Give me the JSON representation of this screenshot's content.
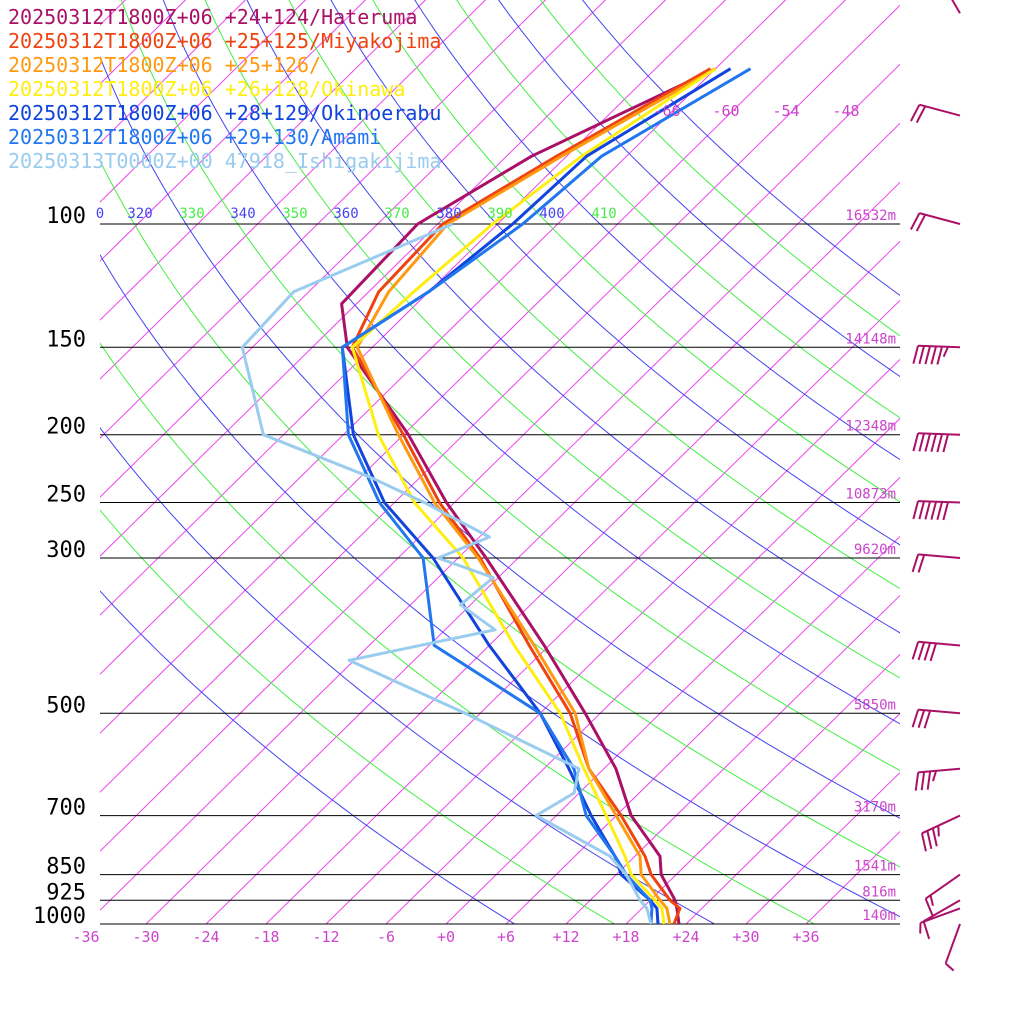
{
  "chart_data": {
    "type": "line",
    "title": "",
    "xlabel": "",
    "ylabel": "",
    "x_unit": "degC",
    "y_unit": "hPa",
    "skew_t": true,
    "pressure_log_scale": true,
    "ylim": [
      1000,
      100
    ],
    "xlim_at_1000hPa": [
      -40,
      40
    ],
    "pressure_ticks": [
      {
        "p": 100,
        "label": "100",
        "height": "16532m"
      },
      {
        "p": 150,
        "label": "150",
        "height": "14148m"
      },
      {
        "p": 200,
        "label": "200",
        "height": "12348m"
      },
      {
        "p": 250,
        "label": "250",
        "height": "10873m"
      },
      {
        "p": 300,
        "label": "300",
        "height": "9620m"
      },
      {
        "p": 500,
        "label": "500",
        "height": "5850m"
      },
      {
        "p": 700,
        "label": "700",
        "height": "3170m"
      },
      {
        "p": 850,
        "label": "850",
        "height": "1541m"
      },
      {
        "p": 925,
        "label": "925",
        "height": "816m"
      },
      {
        "p": 1000,
        "label": "1000",
        "height": "140m"
      }
    ],
    "temperature_ticks": [
      {
        "t": -36,
        "label": "-36"
      },
      {
        "t": -30,
        "label": "-30"
      },
      {
        "t": -24,
        "label": "-24"
      },
      {
        "t": -18,
        "label": "-18"
      },
      {
        "t": -12,
        "label": "-12"
      },
      {
        "t": -6,
        "label": "-6"
      },
      {
        "t": 0,
        "label": "+0"
      },
      {
        "t": 6,
        "label": "+6"
      },
      {
        "t": 12,
        "label": "+12"
      },
      {
        "t": 18,
        "label": "+18"
      },
      {
        "t": 24,
        "label": "+24"
      },
      {
        "t": 30,
        "label": "+30"
      },
      {
        "t": 36,
        "label": "+36"
      }
    ],
    "isotherm_labels_top": [
      {
        "t": -66,
        "label": "-66"
      },
      {
        "t": -60,
        "label": "-60"
      },
      {
        "t": -54,
        "label": "-54"
      },
      {
        "t": -48,
        "label": "-48"
      }
    ],
    "theta_labels": [
      {
        "value": 310,
        "label": "0",
        "kind": "dry"
      },
      {
        "value": 320,
        "label": "320",
        "kind": "dry"
      },
      {
        "value": 330,
        "label": "330",
        "kind": "moist"
      },
      {
        "value": 340,
        "label": "340",
        "kind": "dry"
      },
      {
        "value": 350,
        "label": "350",
        "kind": "moist"
      },
      {
        "value": 360,
        "label": "360",
        "kind": "dry"
      },
      {
        "value": 370,
        "label": "370",
        "kind": "moist"
      },
      {
        "value": 380,
        "label": "380",
        "kind": "dry"
      },
      {
        "value": 390,
        "label": "390",
        "kind": "moist"
      },
      {
        "value": 400,
        "label": "400",
        "kind": "dry"
      },
      {
        "value": 410,
        "label": "410",
        "kind": "moist"
      }
    ],
    "series": [
      {
        "name": "20250312T1800Z+06 +24+124/Hateruma",
        "color": "#aa1166",
        "points": [
          [
            1000,
            23.3
          ],
          [
            950,
            21.5
          ],
          [
            925,
            20.5
          ],
          [
            850,
            16.5
          ],
          [
            800,
            14.5
          ],
          [
            700,
            7.5
          ],
          [
            600,
            1.2
          ],
          [
            500,
            -7.5
          ],
          [
            400,
            -18.5
          ],
          [
            300,
            -33.2
          ],
          [
            250,
            -42.8
          ],
          [
            200,
            -53.5
          ],
          [
            150,
            -68.5
          ],
          [
            130,
            -73.5
          ],
          [
            100,
            -74.0
          ],
          [
            80,
            -69.5
          ],
          [
            60,
            -60.0
          ]
        ]
      },
      {
        "name": "20250312T1800Z+06 +25+125/Miyakojima",
        "color": "#ee4411",
        "points": [
          [
            1000,
            22.8
          ],
          [
            950,
            21.8
          ],
          [
            925,
            20.0
          ],
          [
            850,
            15.5
          ],
          [
            800,
            13.0
          ],
          [
            700,
            6.5
          ],
          [
            600,
            -1.5
          ],
          [
            500,
            -9.0
          ],
          [
            400,
            -20.0
          ],
          [
            300,
            -33.8
          ],
          [
            250,
            -43.5
          ],
          [
            200,
            -54.0
          ],
          [
            150,
            -68.0
          ],
          [
            125,
            -71.0
          ],
          [
            100,
            -71.5
          ],
          [
            80,
            -67.0
          ],
          [
            60,
            -60.5
          ]
        ]
      },
      {
        "name": "20250312T1800Z+06 +25+126/",
        "color": "#ff9911",
        "points": [
          [
            1000,
            22.4
          ],
          [
            950,
            20.5
          ],
          [
            925,
            19.0
          ],
          [
            850,
            14.5
          ],
          [
            800,
            12.5
          ],
          [
            700,
            6.0
          ],
          [
            600,
            -1.5
          ],
          [
            500,
            -8.5
          ],
          [
            400,
            -19.5
          ],
          [
            300,
            -34.0
          ],
          [
            250,
            -44.0
          ],
          [
            200,
            -54.5
          ],
          [
            150,
            -67.5
          ],
          [
            125,
            -70.0
          ],
          [
            100,
            -71.0
          ],
          [
            80,
            -66.5
          ],
          [
            60,
            -60.0
          ]
        ]
      },
      {
        "name": "20250312T1800Z+06 +26+128/Okinawa",
        "color": "#ffee11",
        "points": [
          [
            1000,
            21.8
          ],
          [
            950,
            20.0
          ],
          [
            925,
            18.5
          ],
          [
            850,
            13.5
          ],
          [
            800,
            11.0
          ],
          [
            700,
            5.0
          ],
          [
            600,
            -2.0
          ],
          [
            500,
            -10.0
          ],
          [
            400,
            -21.5
          ],
          [
            300,
            -35.5
          ],
          [
            250,
            -46.0
          ],
          [
            200,
            -56.5
          ],
          [
            150,
            -68.0
          ],
          [
            125,
            -67.5
          ],
          [
            100,
            -66.5
          ],
          [
            80,
            -64.5
          ],
          [
            60,
            -60.0
          ]
        ]
      },
      {
        "name": "20250312T1800Z+06 +28+129/Okinoerabu",
        "color": "#1144dd",
        "points": [
          [
            1000,
            21.2
          ],
          [
            950,
            19.5
          ],
          [
            925,
            18.0
          ],
          [
            850,
            12.5
          ],
          [
            800,
            10.0
          ],
          [
            700,
            3.5
          ],
          [
            600,
            -3.5
          ],
          [
            500,
            -12.0
          ],
          [
            400,
            -24.0
          ],
          [
            300,
            -38.5
          ],
          [
            250,
            -49.0
          ],
          [
            200,
            -59.0
          ],
          [
            150,
            -69.0
          ],
          [
            125,
            -66.0
          ],
          [
            100,
            -64.5
          ],
          [
            80,
            -64.0
          ],
          [
            60,
            -58.5
          ]
        ]
      },
      {
        "name": "20250312T1800Z+06 +29+130/Amami",
        "color": "#2277ee",
        "points": [
          [
            1000,
            20.5
          ],
          [
            950,
            19.0
          ],
          [
            925,
            18.0
          ],
          [
            850,
            13.0
          ],
          [
            800,
            10.0
          ],
          [
            700,
            3.0
          ],
          [
            600,
            -3.0
          ],
          [
            500,
            -12.0
          ],
          [
            400,
            -29.5
          ],
          [
            300,
            -39.5
          ],
          [
            250,
            -49.5
          ],
          [
            200,
            -59.5
          ],
          [
            150,
            -69.0
          ],
          [
            125,
            -66.0
          ],
          [
            100,
            -63.5
          ],
          [
            80,
            -62.5
          ],
          [
            60,
            -56.5
          ]
        ]
      },
      {
        "name": "20250313T0000Z+00 47918_Ishigakijima",
        "color": "#99ccee",
        "points": [
          [
            1000,
            20.5
          ],
          [
            950,
            18.5
          ],
          [
            925,
            17.0
          ],
          [
            850,
            13.0
          ],
          [
            800,
            9.5
          ],
          [
            700,
            -2.0
          ],
          [
            650,
            -0.5
          ],
          [
            600,
            -2.5
          ],
          [
            500,
            -19.5
          ],
          [
            420,
            -36.5
          ],
          [
            380,
            -25.0
          ],
          [
            350,
            -31.0
          ],
          [
            320,
            -30.5
          ],
          [
            300,
            -38.0
          ],
          [
            280,
            -35.0
          ],
          [
            250,
            -45.0
          ],
          [
            230,
            -53.0
          ],
          [
            200,
            -68.0
          ],
          [
            150,
            -79.0
          ],
          [
            125,
            -79.5
          ],
          [
            100,
            -70.5
          ]
        ]
      }
    ],
    "wind_barbs": [
      {
        "p": 1000,
        "speed_kt": 5,
        "dir_deg": 200
      },
      {
        "p": 950,
        "speed_kt": 5,
        "dir_deg": 250
      },
      {
        "p": 925,
        "speed_kt": 10,
        "dir_deg": 240
      },
      {
        "p": 850,
        "speed_kt": 15,
        "dir_deg": 235
      },
      {
        "p": 700,
        "speed_kt": 35,
        "dir_deg": 245
      },
      {
        "p": 600,
        "speed_kt": 35,
        "dir_deg": 265
      },
      {
        "p": 500,
        "speed_kt": 30,
        "dir_deg": 275
      },
      {
        "p": 400,
        "speed_kt": 40,
        "dir_deg": 275
      },
      {
        "p": 300,
        "speed_kt": 20,
        "dir_deg": 275
      },
      {
        "p": 250,
        "speed_kt": 60,
        "dir_deg": 272
      },
      {
        "p": 200,
        "speed_kt": 60,
        "dir_deg": 272
      },
      {
        "p": 150,
        "speed_kt": 55,
        "dir_deg": 272
      },
      {
        "p": 100,
        "speed_kt": 20,
        "dir_deg": 285
      },
      {
        "p": 70,
        "speed_kt": 20,
        "dir_deg": 285
      },
      {
        "p": 50,
        "speed_kt": 10,
        "dir_deg": 330
      }
    ]
  },
  "colors": {
    "isotherm": "#ee44ee",
    "dry_adiabat": "#4444ee",
    "moist_adiabat": "#44ee44",
    "isobar": "#000000",
    "label_magenta": "#cc44cc",
    "barb": "#aa1166"
  }
}
